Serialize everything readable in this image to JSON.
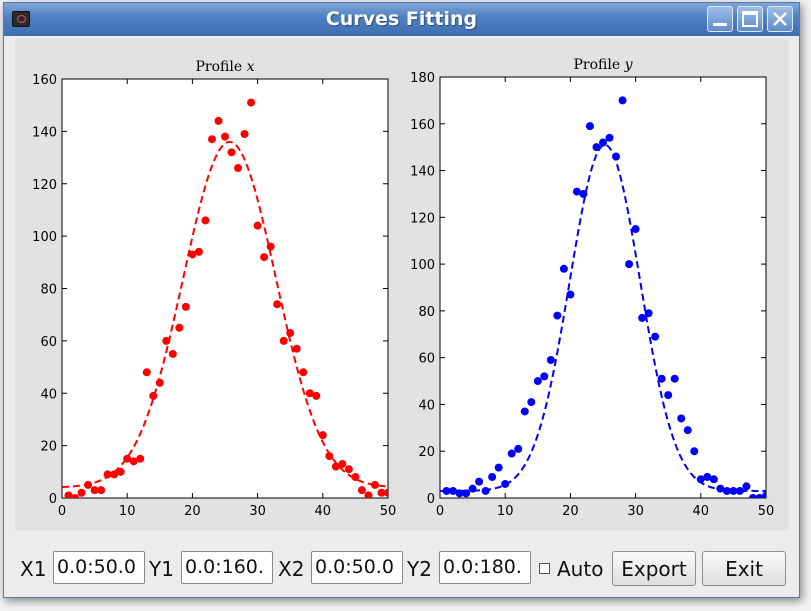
{
  "window": {
    "title": "Curves Fitting",
    "icons": {
      "app": "app-icon",
      "minimize": "minimize-icon",
      "maximize": "maximize-icon",
      "close": "close-icon"
    }
  },
  "chart_data": [
    {
      "type": "scatter",
      "title": "Profile x",
      "xlabel": "",
      "ylabel": "",
      "xlim": [
        0,
        50
      ],
      "ylim": [
        0,
        160
      ],
      "xticks": [
        0,
        10,
        20,
        30,
        40,
        50
      ],
      "yticks": [
        0,
        20,
        40,
        60,
        80,
        100,
        120,
        140,
        160
      ],
      "grid": false,
      "color": "#ff0000",
      "fit": {
        "style": "dashed",
        "amplitude": 132,
        "center": 25.7,
        "sigma": 7.1,
        "offset": 4
      },
      "x": [
        1,
        2,
        3,
        4,
        5,
        6,
        7,
        8,
        9,
        10,
        11,
        12,
        13,
        14,
        15,
        16,
        17,
        18,
        19,
        20,
        21,
        22,
        23,
        24,
        25,
        26,
        27,
        28,
        29,
        30,
        31,
        32,
        33,
        34,
        35,
        36,
        37,
        38,
        39,
        40,
        41,
        42,
        43,
        44,
        45,
        46,
        47,
        48,
        49,
        50
      ],
      "y": [
        1,
        0,
        2,
        5,
        3,
        3,
        9,
        9,
        10,
        15,
        14,
        15,
        48,
        39,
        44,
        60,
        55,
        65,
        73,
        93,
        94,
        106,
        137,
        144,
        138,
        132,
        126,
        139,
        151,
        104,
        92,
        96,
        74,
        60,
        63,
        57,
        48,
        40,
        39,
        24,
        16,
        12,
        13,
        11,
        8,
        3,
        1,
        5,
        2,
        2
      ]
    },
    {
      "type": "scatter",
      "title": "Profile y",
      "xlabel": "",
      "ylabel": "",
      "xlim": [
        0,
        50
      ],
      "ylim": [
        0,
        180
      ],
      "xticks": [
        0,
        10,
        20,
        30,
        40,
        50
      ],
      "yticks": [
        0,
        20,
        40,
        60,
        80,
        100,
        120,
        140,
        160,
        180
      ],
      "grid": false,
      "color": "#0000ff",
      "fit": {
        "style": "dashed",
        "amplitude": 148,
        "center": 25.3,
        "sigma": 5.4,
        "offset": 3
      },
      "x": [
        1,
        2,
        3,
        4,
        5,
        6,
        7,
        8,
        9,
        10,
        11,
        12,
        13,
        14,
        15,
        16,
        17,
        18,
        19,
        20,
        21,
        22,
        23,
        24,
        25,
        26,
        27,
        28,
        29,
        30,
        31,
        32,
        33,
        34,
        35,
        36,
        37,
        38,
        39,
        40,
        41,
        42,
        43,
        44,
        45,
        46,
        47,
        48,
        49,
        50
      ],
      "y": [
        3,
        3,
        2,
        2,
        4,
        7,
        3,
        9,
        13,
        6,
        19,
        21,
        37,
        41,
        50,
        52,
        59,
        78,
        98,
        87,
        131,
        130,
        159,
        150,
        152,
        154,
        146,
        170,
        100,
        115,
        77,
        79,
        69,
        51,
        44,
        51,
        34,
        29,
        20,
        8,
        9,
        8,
        4,
        3,
        3,
        3,
        5,
        0,
        0,
        1
      ]
    }
  ],
  "controls": {
    "x1_label": "X1",
    "x1_value": "0.0:50.0",
    "y1_label": "Y1",
    "y1_value": "0.0:160.",
    "x2_label": "X2",
    "x2_value": "0.0:50.0",
    "y2_label": "Y2",
    "y2_value": "0.0:180.",
    "auto_label": "Auto",
    "export_label": "Export",
    "exit_label": "Exit"
  }
}
